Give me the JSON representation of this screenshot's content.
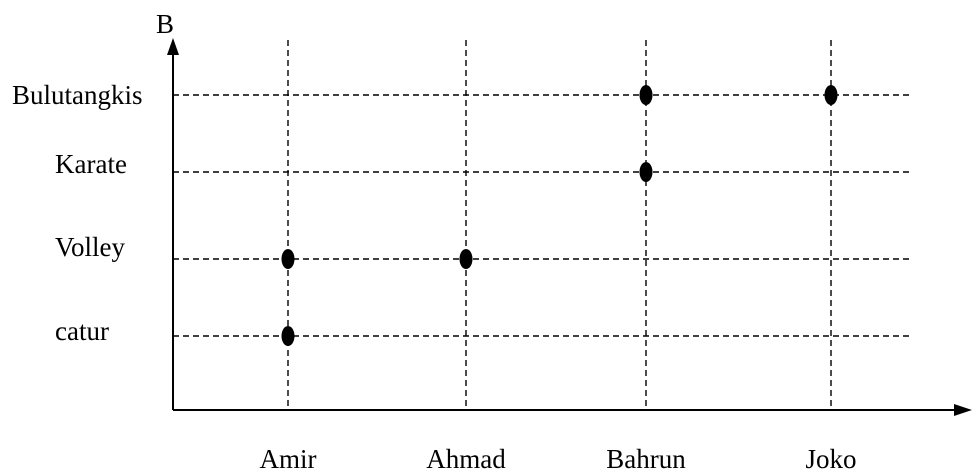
{
  "chart_data": {
    "type": "scatter",
    "title": "",
    "xlabel": "",
    "ylabel": "B",
    "x_categories": [
      "Amir",
      "Ahmad",
      "Bahrun",
      "Joko"
    ],
    "y_categories": [
      "catur",
      "Volley",
      "Karate",
      "Bulutangkis"
    ],
    "points": [
      {
        "x": "Amir",
        "y": "catur"
      },
      {
        "x": "Amir",
        "y": "Volley"
      },
      {
        "x": "Ahmad",
        "y": "Volley"
      },
      {
        "x": "Bahrun",
        "y": "Karate"
      },
      {
        "x": "Bahrun",
        "y": "Bulutangkis"
      },
      {
        "x": "Joko",
        "y": "Bulutangkis"
      }
    ],
    "grid": true,
    "grid_style": "dashed",
    "legend": "none",
    "colors": {
      "axis": "#000000",
      "grid": "#000000",
      "point": "#000000",
      "background": "#ffffff"
    }
  }
}
